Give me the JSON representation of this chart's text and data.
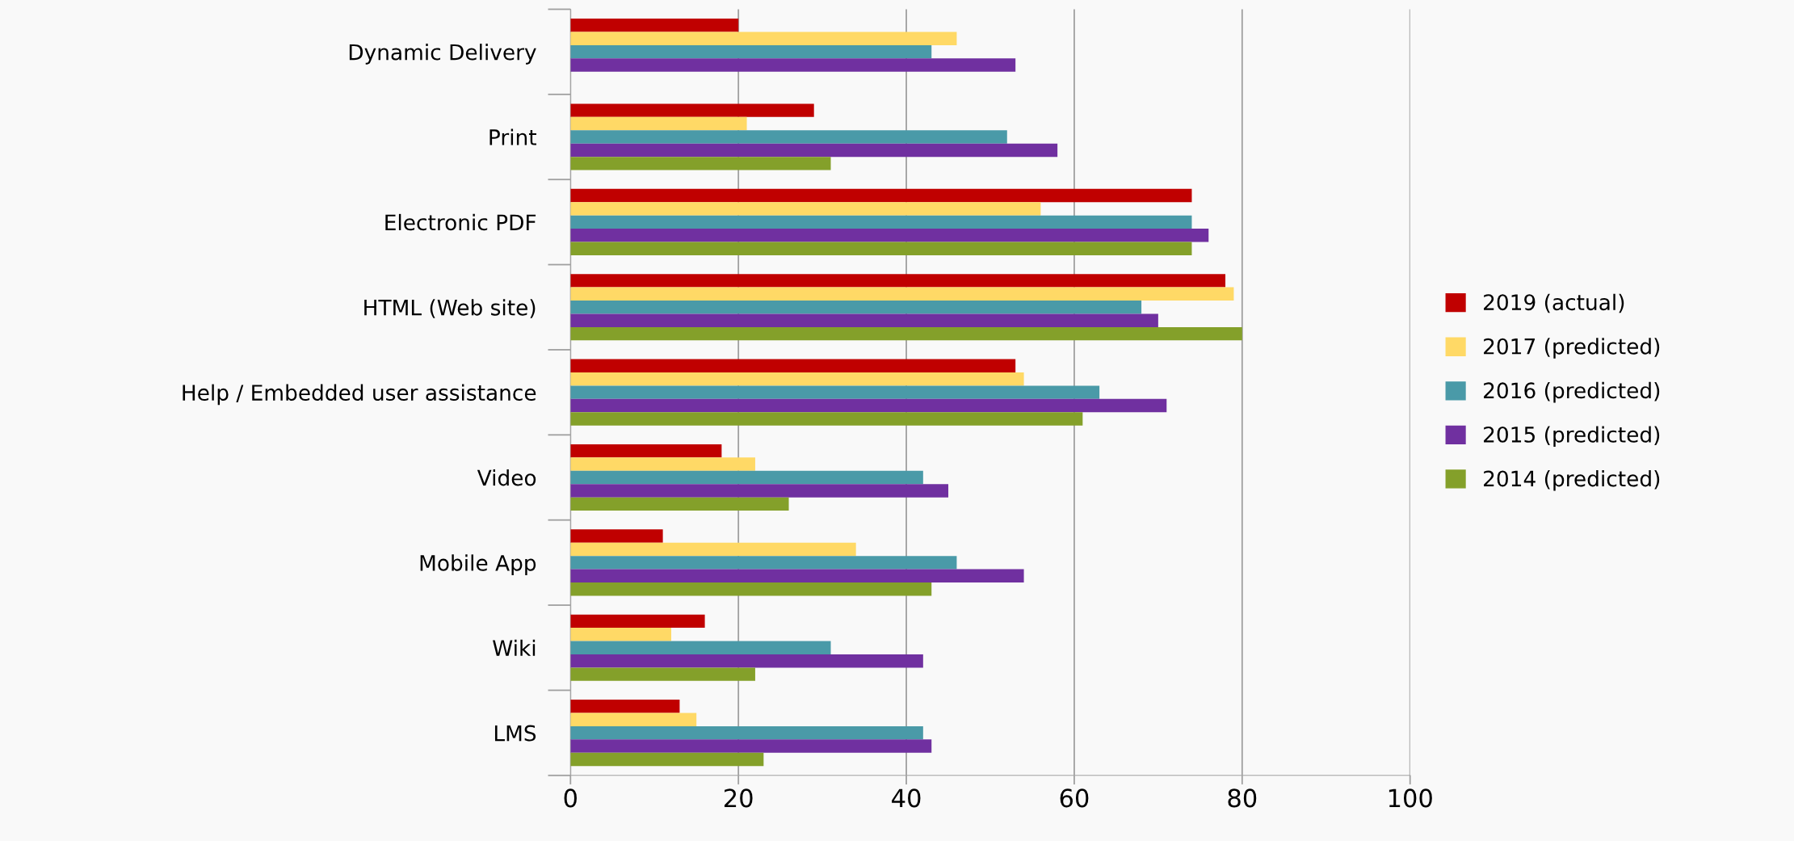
{
  "chart_data": {
    "type": "bar",
    "orientation": "horizontal",
    "categories": [
      "Dynamic Delivery",
      "Print",
      "Electronic PDF",
      "HTML (Web site)",
      "Help / Embedded user assistance",
      "Video",
      "Mobile App",
      "Wiki",
      "LMS"
    ],
    "series": [
      {
        "name": "2019 (actual)",
        "color": "#c00000",
        "values": [
          20,
          29,
          74,
          78,
          53,
          18,
          11,
          16,
          13
        ]
      },
      {
        "name": "2017 (predicted)",
        "color": "#ffd966",
        "values": [
          46,
          21,
          56,
          79,
          54,
          22,
          34,
          12,
          15
        ]
      },
      {
        "name": "2016 (predicted)",
        "color": "#4a9aa8",
        "values": [
          43,
          52,
          74,
          68,
          63,
          42,
          46,
          31,
          42
        ]
      },
      {
        "name": "2015 (predicted)",
        "color": "#7030a0",
        "values": [
          53,
          58,
          76,
          70,
          71,
          45,
          54,
          42,
          43
        ]
      },
      {
        "name": "2014 (predicted)",
        "color": "#84a02a",
        "values": [
          null,
          31,
          74,
          80,
          61,
          26,
          43,
          22,
          23
        ]
      }
    ],
    "xlim": [
      0,
      100
    ],
    "xticks": [
      0,
      20,
      40,
      60,
      80,
      100
    ],
    "grid": "x",
    "legend": "right"
  }
}
